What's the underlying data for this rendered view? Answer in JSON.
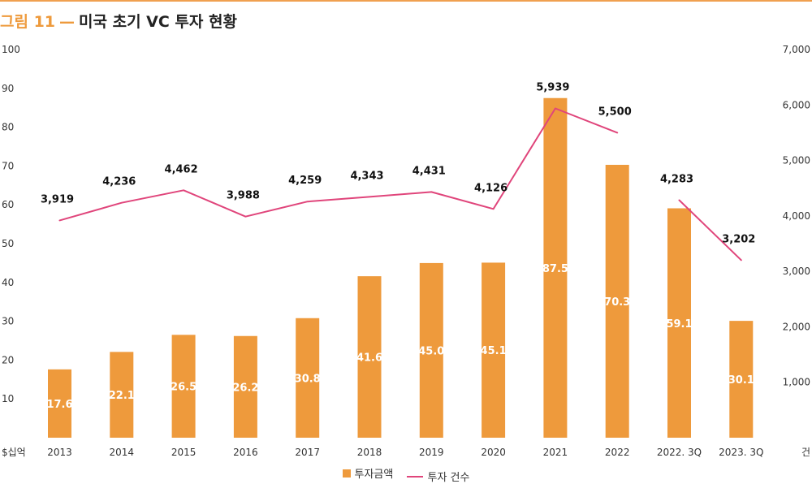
{
  "header": {
    "figure_label": "그림 11",
    "title": "미국 초기 VC 투자 현황"
  },
  "colors": {
    "accent": "#ee9a3c",
    "bar": "#ee9a3c",
    "line": "#e0457b"
  },
  "chart_data": {
    "type": "bar",
    "categories": [
      "2013",
      "2014",
      "2015",
      "2016",
      "2017",
      "2018",
      "2019",
      "2020",
      "2021",
      "2022",
      "2022. 3Q",
      "2023. 3Q"
    ],
    "series": [
      {
        "name": "투자금액",
        "type": "bar",
        "axis": "left",
        "values": [
          17.6,
          22.1,
          26.5,
          26.2,
          30.8,
          41.6,
          45.0,
          45.1,
          87.5,
          70.3,
          59.1,
          30.1
        ],
        "labels": [
          "17.6",
          "22.1",
          "26.5",
          "26.2",
          "30.8",
          "41.6",
          "45.0",
          "45.1",
          "87.5",
          "70.3",
          "59.1",
          "30.1"
        ]
      },
      {
        "name": "투자 건수",
        "type": "line",
        "axis": "right",
        "values": [
          3919,
          4236,
          4462,
          3988,
          4259,
          4343,
          4431,
          4126,
          5939,
          5500,
          4283,
          3202
        ],
        "labels": [
          "3,919",
          "4,236",
          "4,462",
          "3,988",
          "4,259",
          "4,343",
          "4,431",
          "4,126",
          "5,939",
          "5,500",
          "4,283",
          "3,202"
        ]
      }
    ],
    "line_segments": [
      [
        0,
        9
      ],
      [
        10,
        11
      ]
    ],
    "y_left": {
      "unit_label": "$십억",
      "range": [
        0,
        100
      ],
      "ticks": [
        10,
        20,
        30,
        40,
        50,
        60,
        70,
        80,
        90,
        100
      ],
      "tick_labels": [
        "10",
        "20",
        "30",
        "40",
        "50",
        "60",
        "70",
        "80",
        "90",
        "100"
      ]
    },
    "y_right": {
      "unit_label": "건",
      "range": [
        0,
        7000
      ],
      "ticks": [
        1000,
        2000,
        3000,
        4000,
        5000,
        6000,
        7000
      ],
      "tick_labels": [
        "1,000",
        "2,000",
        "3,000",
        "4,000",
        "5,000",
        "6,000",
        "7,000"
      ]
    },
    "grid": false,
    "legend_position": "bottom-center"
  }
}
